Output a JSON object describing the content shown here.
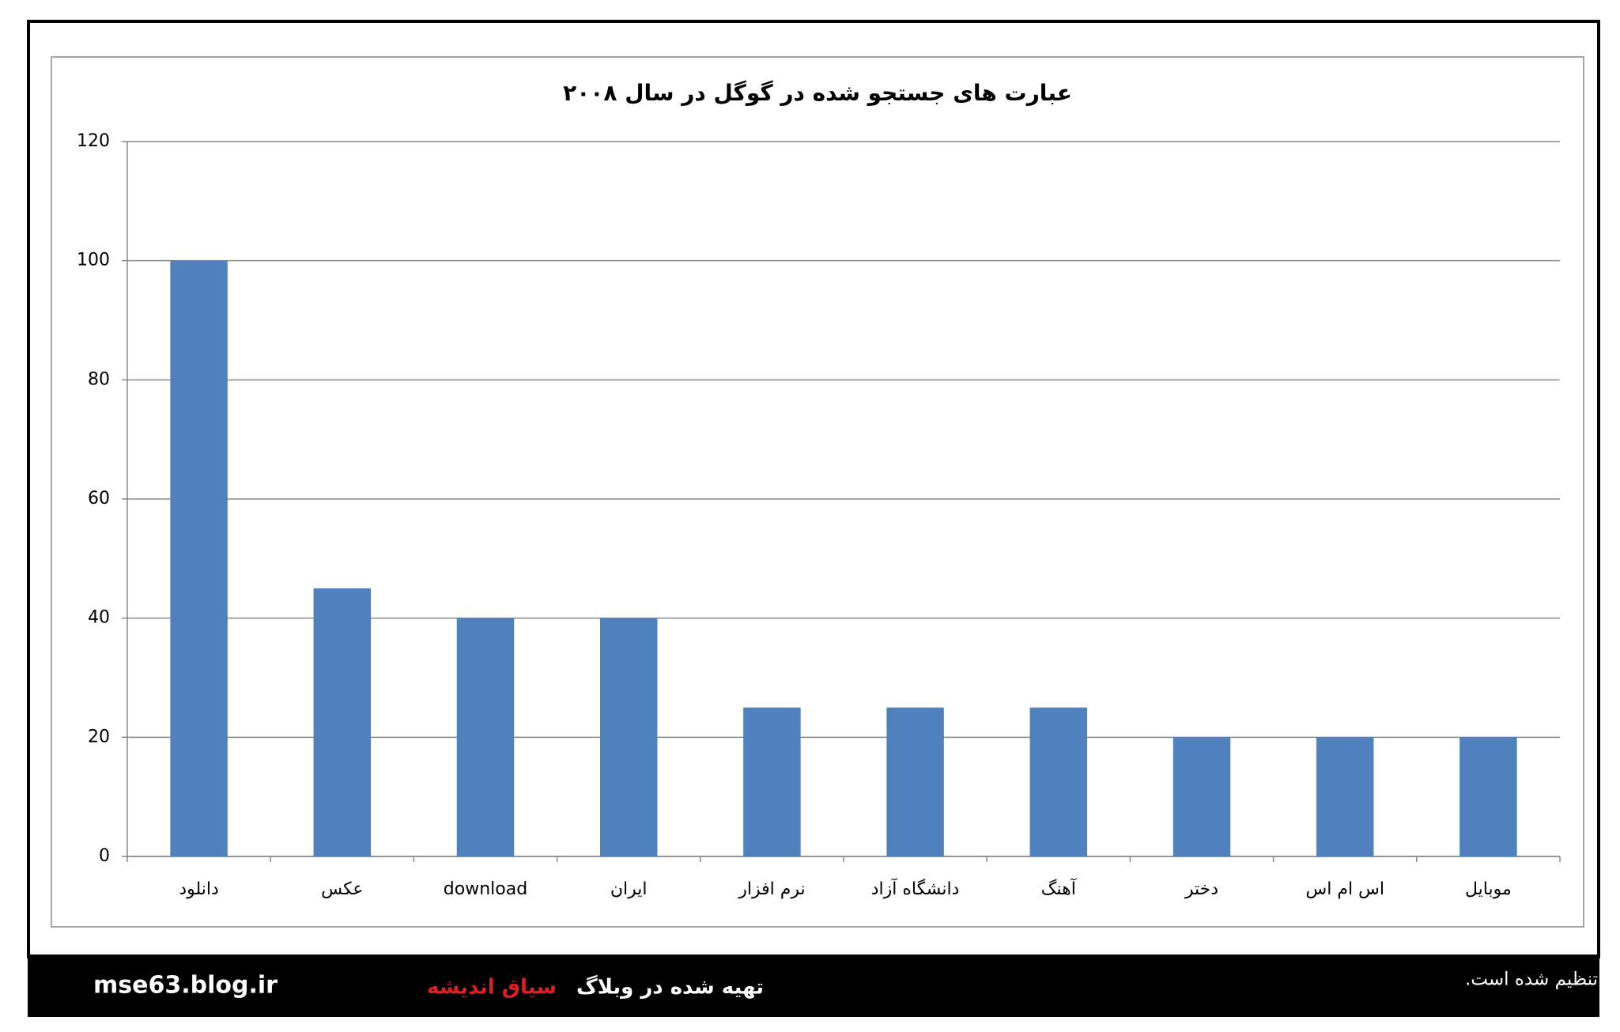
{
  "chart_data": {
    "type": "bar",
    "title": "عبارت های جستجو شده در گوگل در سال ۲۰۰۸",
    "categories": [
      "دانلود",
      "عکس",
      "download",
      "ایران",
      "نرم افزار",
      "دانشگاه آزاد",
      "آهنگ",
      "دختر",
      "اس ام اس",
      "موبایل"
    ],
    "values": [
      100,
      45,
      40,
      40,
      25,
      25,
      25,
      20,
      20,
      20
    ],
    "color": "#4f81bd",
    "ylim": [
      0,
      120
    ],
    "yticks": [
      0,
      20,
      40,
      60,
      80,
      100,
      120
    ],
    "grid": true
  },
  "footer": {
    "site": "mse63.blog.ir",
    "made_in": "تهیه شده در وبلاگ",
    "blog_name": "سیاق اندیشه",
    "note": "نمودار فوق بر اساس آمار سایت گوگل تنظیم شده است."
  }
}
